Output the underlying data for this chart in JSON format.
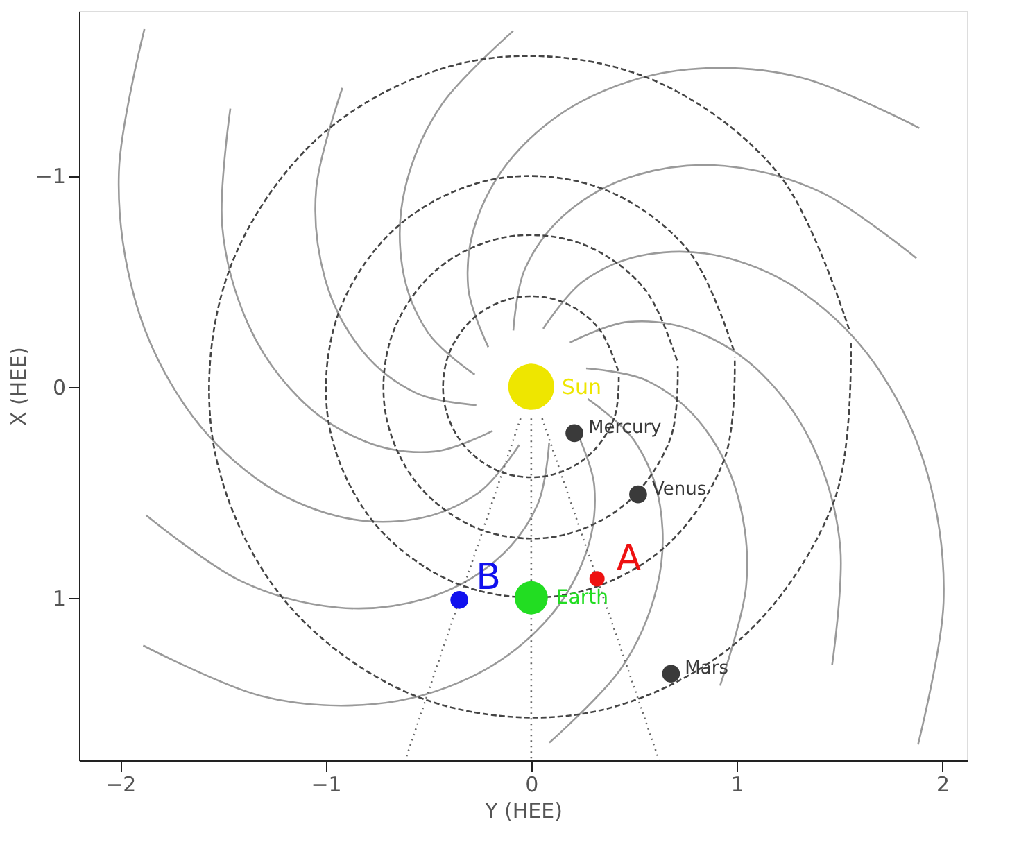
{
  "chart_data": {
    "type": "scatter",
    "xlabel": "Y (HEE)",
    "ylabel": "X (HEE)",
    "xlim": [
      -2.2,
      2.12
    ],
    "ylim": [
      1.77,
      -1.78
    ],
    "xticks": [
      -2,
      -1,
      0,
      1,
      2
    ],
    "yticks": [
      -1,
      0,
      1
    ],
    "series": [
      {
        "type": "line",
        "line_style": "solid",
        "color": "#9a9a9a",
        "x": [
          -0.209,
          -0.307,
          -0.261,
          -0.059,
          0.293,
          0.766,
          1.318,
          1.888
        ],
        "values": [
          -0.188,
          -0.472,
          -0.803,
          -1.124,
          -1.376,
          -1.504,
          -1.464,
          -1.226
        ]
      },
      {
        "type": "line",
        "line_style": "solid",
        "color": "#9a9a9a",
        "x": [
          -0.087,
          -0.029,
          0.175,
          0.511,
          0.941,
          1.416,
          1.874
        ],
        "values": [
          -0.267,
          -0.562,
          -0.826,
          -1.003,
          -1.046,
          -0.919,
          -0.609
        ]
      },
      {
        "type": "line",
        "line_style": "solid",
        "color": "#9a9a9a",
        "x": [
          0.058,
          0.256,
          0.565,
          0.944,
          1.338,
          1.686,
          1.927,
          2.006,
          1.882
        ],
        "values": [
          -0.275,
          -0.502,
          -0.627,
          -0.613,
          -0.435,
          -0.088,
          0.41,
          1.022,
          1.695
        ]
      },
      {
        "type": "line",
        "line_style": "solid",
        "color": "#9a9a9a",
        "x": [
          0.188,
          0.472,
          0.803,
          1.124,
          1.376,
          1.504,
          1.464
        ],
        "values": [
          -0.209,
          -0.307,
          -0.261,
          -0.059,
          0.293,
          0.766,
          1.318
        ]
      },
      {
        "type": "line",
        "line_style": "solid",
        "color": "#9a9a9a",
        "x": [
          0.267,
          0.562,
          0.826,
          1.003,
          1.046,
          0.919
        ],
        "values": [
          -0.087,
          -0.029,
          0.175,
          0.511,
          0.941,
          1.416
        ]
      },
      {
        "type": "line",
        "line_style": "solid",
        "color": "#9a9a9a",
        "x": [
          0.275,
          0.502,
          0.627,
          0.613,
          0.435,
          0.088
        ],
        "values": [
          0.058,
          0.256,
          0.565,
          0.944,
          1.338,
          1.686
        ]
      },
      {
        "type": "line",
        "line_style": "solid",
        "color": "#9a9a9a",
        "x": [
          0.209,
          0.307,
          0.261,
          0.059,
          -0.293,
          -0.766,
          -1.318,
          -1.888
        ],
        "values": [
          0.188,
          0.472,
          0.803,
          1.124,
          1.376,
          1.504,
          1.464,
          1.226
        ]
      },
      {
        "type": "line",
        "line_style": "solid",
        "color": "#9a9a9a",
        "x": [
          0.087,
          0.029,
          -0.175,
          -0.511,
          -0.941,
          -1.416,
          -1.874
        ],
        "values": [
          0.267,
          0.562,
          0.826,
          1.003,
          1.046,
          0.919,
          0.609
        ]
      },
      {
        "type": "line",
        "line_style": "solid",
        "color": "#9a9a9a",
        "x": [
          -0.058,
          -0.256,
          -0.565,
          -0.944,
          -1.338,
          -1.686,
          -1.927,
          -2.006,
          -1.882
        ],
        "values": [
          0.275,
          0.502,
          0.627,
          0.613,
          0.435,
          0.088,
          -0.41,
          -1.022,
          -1.695
        ]
      },
      {
        "type": "line",
        "line_style": "solid",
        "color": "#9a9a9a",
        "x": [
          -0.188,
          -0.472,
          -0.803,
          -1.124,
          -1.376,
          -1.504,
          -1.464
        ],
        "values": [
          0.209,
          0.307,
          0.261,
          0.059,
          -0.293,
          -0.766,
          -1.318
        ]
      },
      {
        "type": "line",
        "line_style": "solid",
        "color": "#9a9a9a",
        "x": [
          -0.267,
          -0.562,
          -0.826,
          -1.003,
          -1.046,
          -0.919
        ],
        "values": [
          0.087,
          0.029,
          -0.175,
          -0.511,
          -0.941,
          -1.416
        ]
      },
      {
        "type": "line",
        "line_style": "solid",
        "color": "#9a9a9a",
        "x": [
          -0.275,
          -0.502,
          -0.627,
          -0.613,
          -0.435,
          -0.088
        ],
        "values": [
          -0.058,
          -0.256,
          -0.565,
          -0.944,
          -1.338,
          -1.686
        ]
      },
      {
        "type": "line",
        "line_style": "dashed",
        "color": "#444444",
        "x": [
          0.423,
          0.329,
          0.147,
          -0.075,
          -0.276,
          -0.404,
          -0.423,
          -0.329,
          -0.147,
          0.075,
          0.276,
          0.404,
          0.426
        ],
        "values": [
          -0.075,
          -0.276,
          -0.404,
          -0.423,
          -0.329,
          -0.147,
          0.075,
          0.276,
          0.404,
          0.423,
          0.329,
          0.147,
          -0.06
        ]
      },
      {
        "type": "line",
        "line_style": "dashed",
        "color": "#444444",
        "x": [
          0.709,
          0.552,
          0.246,
          -0.125,
          -0.463,
          -0.677,
          -0.709,
          -0.552,
          -0.246,
          0.125,
          0.463,
          0.677,
          0.713
        ],
        "values": [
          -0.125,
          -0.463,
          -0.677,
          -0.709,
          -0.552,
          -0.246,
          0.125,
          0.463,
          0.677,
          0.709,
          0.552,
          0.246,
          -0.1
        ]
      },
      {
        "type": "line",
        "line_style": "dashed",
        "color": "#444444",
        "x": [
          0.985,
          0.766,
          0.342,
          -0.174,
          -0.643,
          -0.94,
          -0.985,
          -0.766,
          -0.342,
          0.174,
          0.643,
          0.94,
          0.99
        ],
        "values": [
          -0.174,
          -0.643,
          -0.94,
          -0.985,
          -0.766,
          -0.342,
          0.174,
          0.643,
          0.94,
          0.985,
          0.766,
          0.342,
          -0.139
        ]
      },
      {
        "type": "line",
        "line_style": "dashed",
        "color": "#444444",
        "x": [
          1.546,
          1.203,
          0.537,
          -0.273,
          -1.009,
          -1.475,
          -1.546,
          -1.203,
          -0.537,
          0.273,
          1.009,
          1.475,
          1.555
        ],
        "values": [
          -0.273,
          -1.009,
          -1.475,
          -1.546,
          -1.203,
          -0.537,
          0.273,
          1.009,
          1.475,
          1.546,
          1.203,
          0.537,
          -0.219
        ]
      },
      {
        "type": "line",
        "line_style": "dotted",
        "color": "#666666",
        "x": [
          -0.052,
          -0.613
        ],
        "values": [
          0.15,
          1.77
        ]
      },
      {
        "type": "line",
        "line_style": "dotted",
        "color": "#666666",
        "x": [
          0.053,
          0.622
        ],
        "values": [
          0.15,
          1.77
        ]
      },
      {
        "type": "line",
        "line_style": "dotted",
        "color": "#666666",
        "x": [
          0,
          0
        ],
        "values": [
          0.15,
          1.77
        ]
      },
      {
        "name": "Sun",
        "marker": "circle",
        "color": "#eee600",
        "x": [
          0
        ],
        "values": [
          0
        ],
        "sizes": [
          1
        ]
      },
      {
        "name": "Mercury",
        "marker": "circle",
        "color": "#3a3a3a",
        "x": [
          0.21
        ],
        "values": [
          0.22
        ],
        "sizes": [
          0.15
        ]
      },
      {
        "name": "Venus",
        "marker": "circle",
        "color": "#3a3a3a",
        "x": [
          0.52
        ],
        "values": [
          0.51
        ],
        "sizes": [
          0.15
        ]
      },
      {
        "name": "Earth",
        "marker": "circle",
        "color": "#22dd22",
        "x": [
          0
        ],
        "values": [
          1.0
        ],
        "sizes": [
          0.52
        ]
      },
      {
        "name": "Mars",
        "marker": "circle",
        "color": "#3a3a3a",
        "x": [
          0.68
        ],
        "values": [
          1.36
        ],
        "sizes": [
          0.15
        ]
      },
      {
        "name": "A",
        "marker": "circle",
        "color": "#ee1111",
        "x": [
          0.32
        ],
        "values": [
          0.91
        ],
        "sizes": [
          0.11
        ]
      },
      {
        "name": "B",
        "marker": "circle",
        "color": "#1111ee",
        "x": [
          -0.35
        ],
        "values": [
          1.01
        ],
        "sizes": [
          0.15
        ]
      }
    ]
  }
}
